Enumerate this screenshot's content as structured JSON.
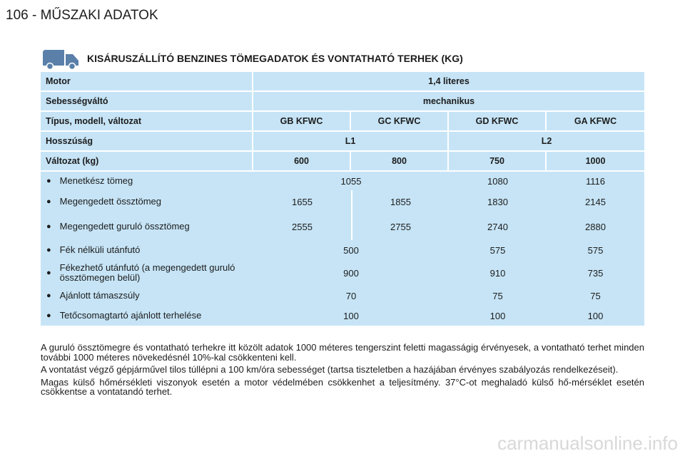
{
  "header": {
    "page_title": "106 - MŰSZAKI ADATOK"
  },
  "section": {
    "title": "KISÁRUSZÁLLÍTÓ BENZINES TÖMEGADATOK ÉS VONTATHATÓ TERHEK (KG)"
  },
  "table": {
    "header_rows": [
      {
        "label": "Motor",
        "cells": [
          "1,4 literes"
        ]
      },
      {
        "label": "Sebességváltó",
        "cells": [
          "mechanikus"
        ]
      },
      {
        "label": "Típus, modell, változat",
        "cells": [
          "GB KFWC",
          "GC KFWC",
          "GD KFWC",
          "GA KFWC"
        ]
      },
      {
        "label": "Hosszúság",
        "cells": [
          "L1",
          "L2"
        ]
      },
      {
        "label": "Változat (kg)",
        "cells": [
          600,
          800,
          750,
          1000
        ]
      }
    ],
    "body_rows": [
      {
        "label": "Menetkész tömeg",
        "values": [
          1055,
          1080,
          1116
        ]
      },
      {
        "label": "Megengedett össztömeg",
        "values": [
          1655,
          1855,
          1830,
          2145
        ]
      },
      {
        "label": "Megengedett guruló össztömeg",
        "values": [
          2555,
          2755,
          2740,
          2880
        ]
      },
      {
        "label": "Fék nélküli utánfutó",
        "values": [
          500,
          575,
          575
        ]
      },
      {
        "label": "Fékezhető utánfutó (a megengedett guruló össztömegen belül)",
        "values": [
          900,
          910,
          735
        ]
      },
      {
        "label": "Ajánlott támaszsúly",
        "values": [
          70,
          75,
          75
        ]
      },
      {
        "label": "Tetőcsomagtartó ajánlott terhelése",
        "values": [
          100,
          100,
          100
        ]
      }
    ]
  },
  "notes": [
    "A guruló össztömegre és vontatható terhekre itt közölt adatok 1000 méteres tengerszint feletti magasságig érvényesek, a vontatható terhet minden további 1000 méteres növekedésnél 10%-kal csökkenteni kell.",
    "A vontatást végző gépjárművel tilos túllépni a 100 km/óra sebességet (tartsa tiszteletben a hazájában érvényes szabályozás rendelkezéseit).",
    "Magas külső hőmérsékleti viszonyok esetén a motor védelmében csökkenhet a teljesítmény. 37°C-ot meghaladó külső hő-mérséklet esetén csökkentse a vontatandó terhet."
  ],
  "watermark": "carmanualsonline.info"
}
